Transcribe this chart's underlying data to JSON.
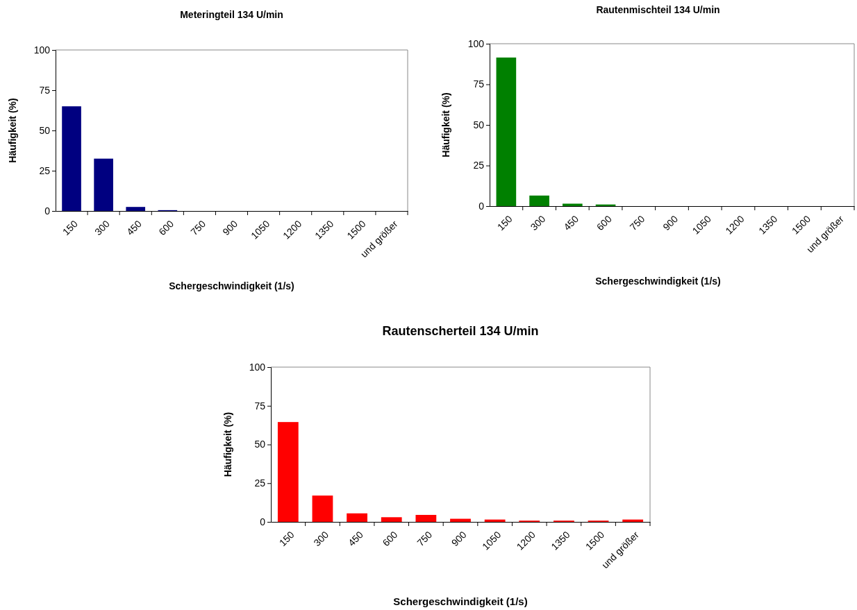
{
  "chart_data": [
    {
      "type": "bar",
      "title": "Meteringteil 134 U/min",
      "xlabel": "Schergeschwindigkeit (1/s)",
      "ylabel": "Häufigkeit (%)",
      "categories": [
        "150",
        "300",
        "450",
        "600",
        "750",
        "900",
        "1050",
        "1200",
        "1350",
        "1500",
        "und größer"
      ],
      "values": [
        65,
        32.5,
        2.5,
        0.5,
        0,
        0,
        0,
        0,
        0,
        0,
        0
      ],
      "color": "#000080",
      "ylim": [
        0,
        100
      ],
      "yticks": [
        0,
        25,
        50,
        75,
        100
      ],
      "grid": false
    },
    {
      "type": "bar",
      "title": "Rautenmischteil 134 U/min",
      "xlabel": "Schergeschwindigkeit (1/s)",
      "ylabel": "Häufigkeit (%)",
      "categories": [
        "150",
        "300",
        "450",
        "600",
        "750",
        "900",
        "1050",
        "1200",
        "1350",
        "1500",
        "und größer"
      ],
      "values": [
        91.5,
        6.5,
        1.5,
        1,
        0,
        0,
        0,
        0,
        0,
        0,
        0
      ],
      "color": "#008000",
      "ylim": [
        0,
        100
      ],
      "yticks": [
        0,
        25,
        50,
        75,
        100
      ],
      "grid": false
    },
    {
      "type": "bar",
      "title": "Rautenscherteil 134 U/min",
      "xlabel": "Schergeschwindigkeit (1/s)",
      "ylabel": "Häufigkeit (%)",
      "categories": [
        "150",
        "300",
        "450",
        "600",
        "750",
        "900",
        "1050",
        "1200",
        "1350",
        "1500",
        "und größer"
      ],
      "values": [
        64.5,
        17,
        5.5,
        3,
        4.5,
        2,
        1.5,
        0.8,
        0.8,
        0.8,
        1.5
      ],
      "color": "#ff0000",
      "ylim": [
        0,
        100
      ],
      "yticks": [
        0,
        25,
        50,
        75,
        100
      ],
      "grid": false
    }
  ]
}
